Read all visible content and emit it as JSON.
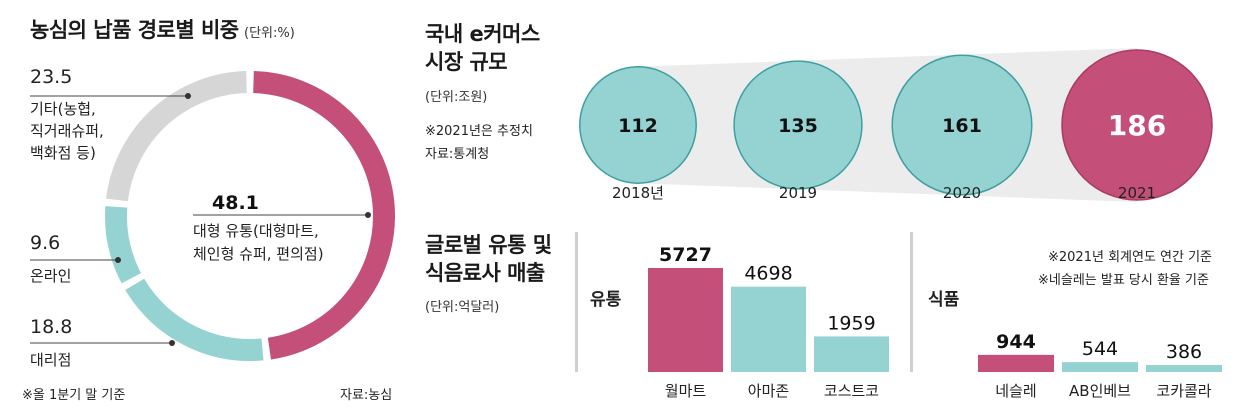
{
  "left": {
    "title": "농심의 납품 경로별 비중",
    "unit": "(단위:%)",
    "footnote": "※올 1분기 말 기준",
    "source": "자료:농심"
  },
  "market": {
    "title_line1": "국내 e커머스",
    "title_line2": "시장 규모",
    "unit": "(단위:조원)",
    "note": "※2021년은 추정치",
    "source": "자료:통계청"
  },
  "global": {
    "title_line1": "글로벌 유통 및",
    "title_line2": "식음료사 매출",
    "unit": "(단위:억달러)",
    "note1": "※2021년 회계연도 연간 기준",
    "note2": "※네슬레는 발표 당시 환율 기준",
    "group_retail": "유통",
    "group_food": "식품"
  },
  "colors": {
    "accent": "#c4507a",
    "teal": "#95d3d3",
    "gray": "#d6d6d6",
    "divider": "#cfcfcf"
  },
  "chart_data": [
    {
      "type": "pie",
      "title": "농심의 납품 경로별 비중",
      "unit": "%",
      "slices": [
        {
          "name": "대형 유통(대형마트, 체인형 슈퍼, 편의점)",
          "line1": "대형 유통(대형마트,",
          "line2": "체인형 슈퍼, 편의점)",
          "value": 48.1,
          "value_label": "48.1",
          "color": "#c4507a"
        },
        {
          "name": "대리점",
          "line1": "대리점",
          "value": 18.8,
          "value_label": "18.8",
          "color": "#95d3d3"
        },
        {
          "name": "온라인",
          "line1": "온라인",
          "value": 9.6,
          "value_label": "9.6",
          "color": "#95d3d3"
        },
        {
          "name": "기타(농협, 직거래슈퍼, 백화점 등)",
          "line1": "기타(농협,",
          "line2": "직거래슈퍼,",
          "line3": "백화점 등)",
          "value": 23.5,
          "value_label": "23.5",
          "color": "#d6d6d6"
        }
      ]
    },
    {
      "type": "bubble",
      "title": "국내 e커머스 시장 규모",
      "unit": "조원",
      "categories": [
        "2018년",
        "2019",
        "2020",
        "2021"
      ],
      "values": [
        112,
        135,
        161,
        186
      ],
      "value_labels": [
        "112",
        "135",
        "161",
        "186"
      ],
      "highlight_index": 3
    },
    {
      "type": "bar",
      "title": "글로벌 유통 매출",
      "unit": "억달러",
      "categories": [
        "월마트",
        "아마존",
        "코스트코"
      ],
      "values": [
        5727,
        4698,
        1959
      ],
      "value_labels": [
        "5727",
        "4698",
        "1959"
      ],
      "highlight_index": 0
    },
    {
      "type": "bar",
      "title": "글로벌 식품 매출",
      "unit": "억달러",
      "categories": [
        "네슬레",
        "AB인베브",
        "코카콜라"
      ],
      "values": [
        944,
        544,
        386
      ],
      "value_labels": [
        "944",
        "544",
        "386"
      ],
      "highlight_index": 0
    }
  ]
}
